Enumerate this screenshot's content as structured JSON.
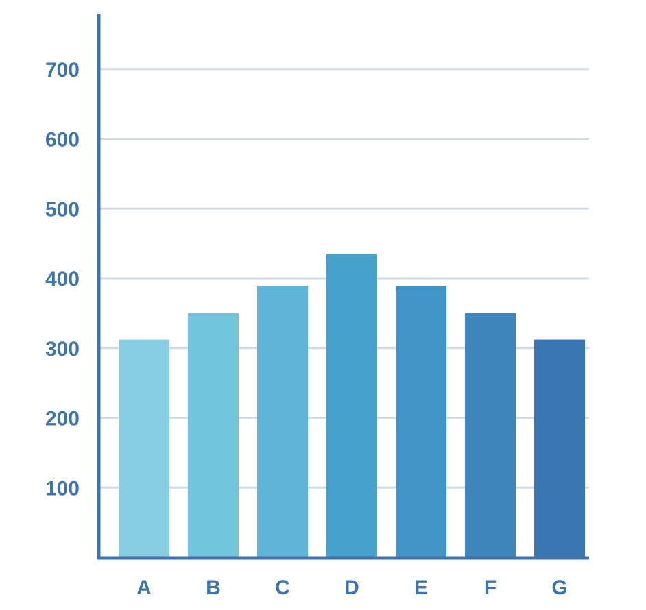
{
  "chart_data": {
    "type": "bar",
    "title": "",
    "xlabel": "",
    "ylabel": "",
    "categories": [
      "A",
      "B",
      "C",
      "D",
      "E",
      "F",
      "G"
    ],
    "values": [
      312,
      350,
      389,
      435,
      389,
      350,
      312
    ],
    "ylim": [
      0,
      780
    ],
    "yticks": [
      100,
      200,
      300,
      400,
      500,
      600,
      700
    ],
    "ytick_labels": [
      "100",
      "200",
      "300",
      "400",
      "500",
      "600",
      "700"
    ],
    "grid": true,
    "legend": "none",
    "bar_colors": [
      "#89cde3",
      "#73c5de",
      "#5eb5d7",
      "#47a2cb",
      "#4194c6",
      "#3f86bc",
      "#3a76b3"
    ],
    "axis_color": "#3d74ab",
    "grid_color": "#d1dbe4"
  }
}
